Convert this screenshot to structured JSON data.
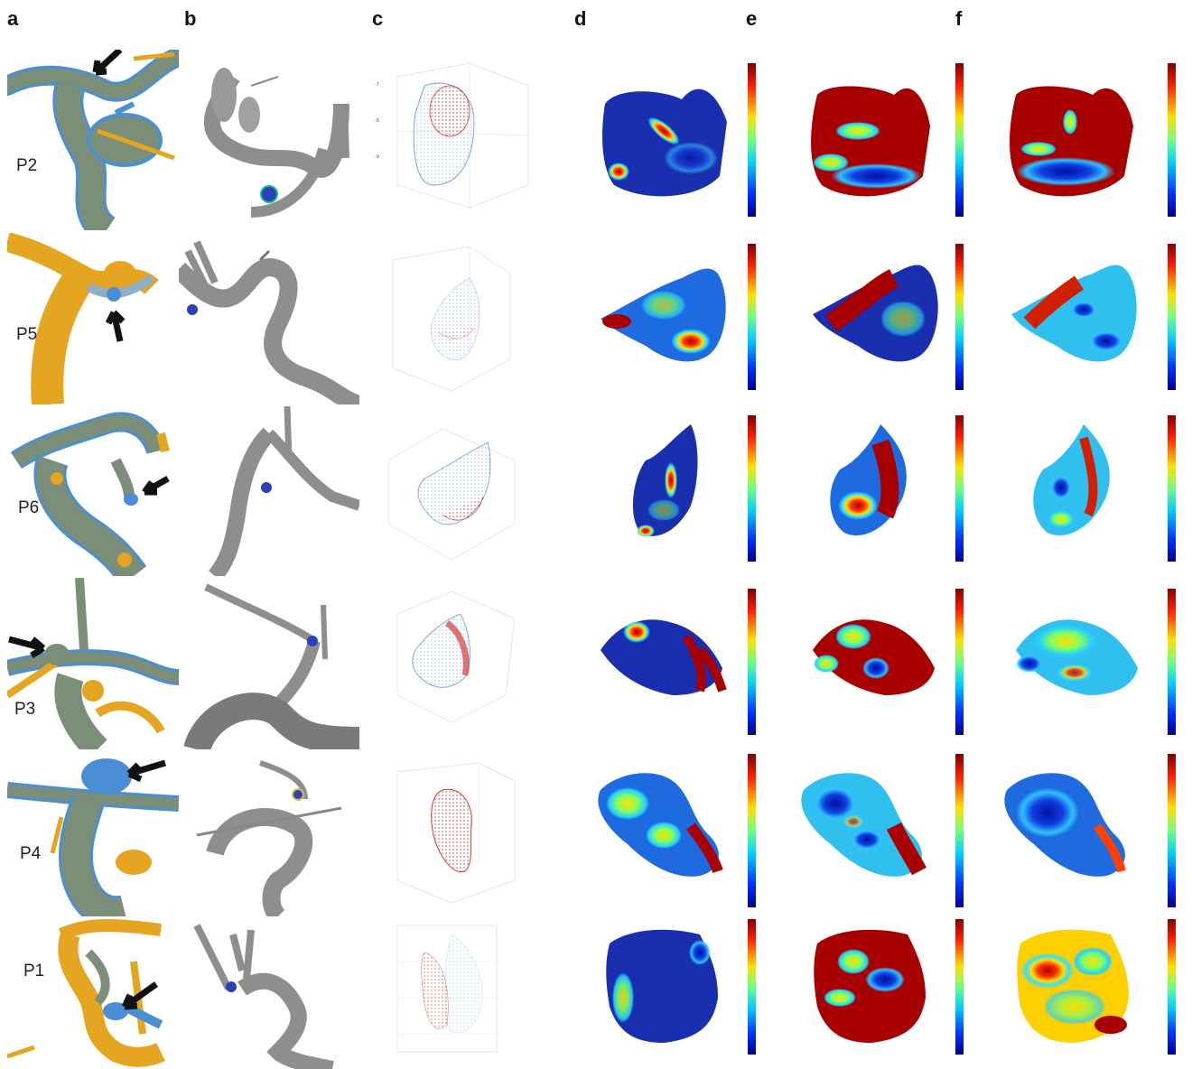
{
  "columns": {
    "a": "a",
    "b": "b",
    "c": "c",
    "d": "d",
    "e": "e",
    "f": "f"
  },
  "patients": [
    "P2",
    "P5",
    "P6",
    "P3",
    "P4",
    "P1"
  ],
  "colors": {
    "vessel_blue": "#4a8fd6",
    "vessel_gold": "#e5a520",
    "vessel_overlap": "#7a8e78",
    "vessel_gray": "#8e8e8e",
    "pointcloud_red": "#d23a3a",
    "pointcloud_blue": "#7aa6dc",
    "map_low": "#1a2fb0",
    "map_high": "#a80000"
  }
}
